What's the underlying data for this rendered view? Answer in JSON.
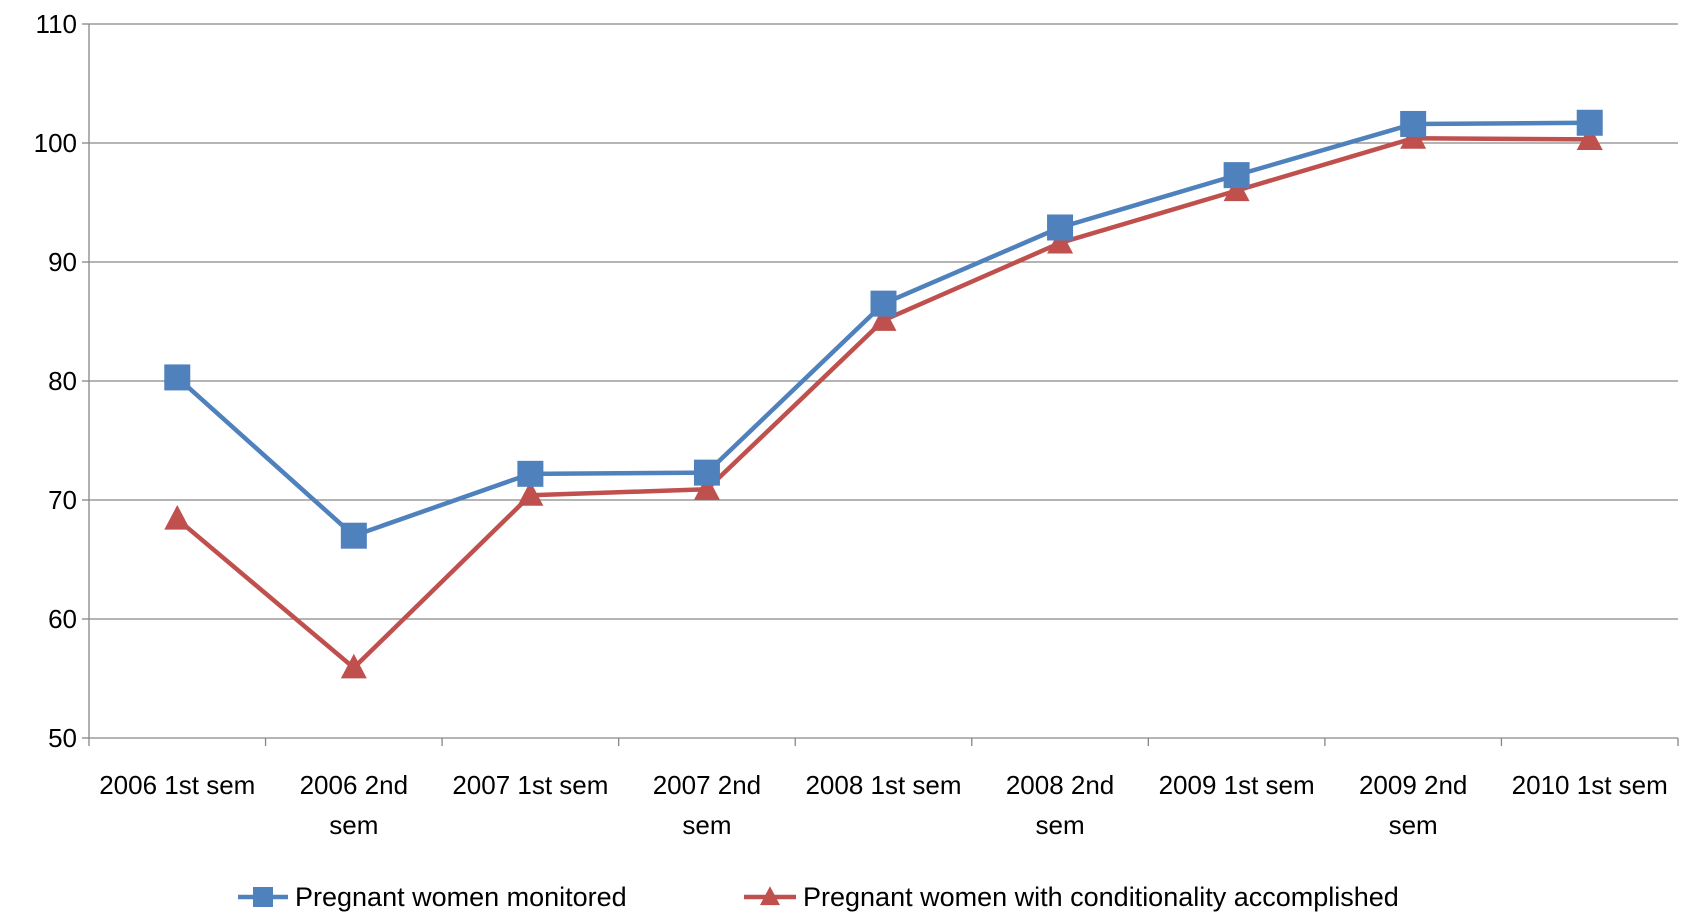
{
  "chart_data": {
    "type": "line",
    "title": "",
    "xlabel": "",
    "ylabel": "",
    "categories": [
      [
        "2006 1st sem"
      ],
      [
        "2006 2nd",
        "sem"
      ],
      [
        "2007 1st sem"
      ],
      [
        "2007 2nd",
        "sem"
      ],
      [
        "2008 1st sem"
      ],
      [
        "2008 2nd",
        "sem"
      ],
      [
        "2009 1st sem"
      ],
      [
        "2009 2nd",
        "sem"
      ],
      [
        "2010 1st sem"
      ]
    ],
    "ylim": [
      50,
      110
    ],
    "yticks": [
      50,
      60,
      70,
      80,
      90,
      100,
      110
    ],
    "grid": true,
    "legend_position": "bottom",
    "series": [
      {
        "name": "Pregnant women monitored",
        "color": "#4f81bd",
        "marker": "square",
        "values": [
          80.3,
          67.0,
          72.2,
          72.3,
          86.5,
          92.9,
          97.3,
          101.6,
          101.7
        ]
      },
      {
        "name": "Pregnant women with conditionality accomplished",
        "color": "#c0504d",
        "marker": "triangle",
        "values": [
          68.4,
          55.9,
          70.4,
          70.9,
          85.1,
          91.6,
          96.0,
          100.4,
          100.3
        ]
      }
    ]
  }
}
